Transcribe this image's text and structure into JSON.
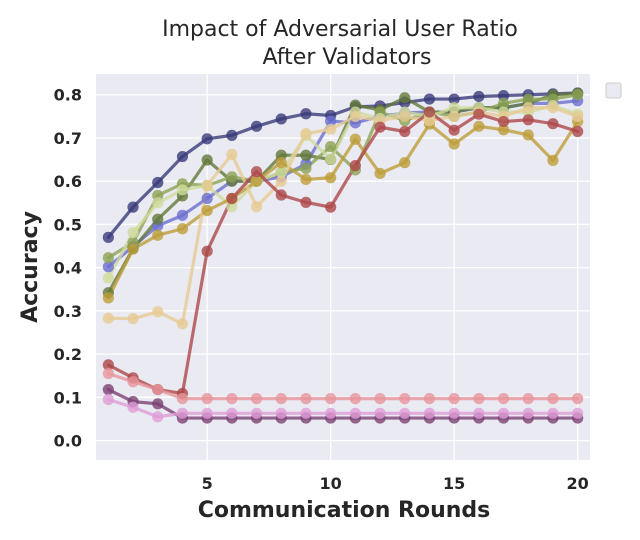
{
  "chart_data": {
    "type": "line",
    "title_line1": "Impact of Adversarial User Ratio",
    "title_line2": "After Validators",
    "xlabel": "Communication Rounds",
    "ylabel": "Accuracy",
    "xlim": [
      0.5,
      20.5
    ],
    "ylim": [
      -0.045,
      0.848
    ],
    "xticks": [
      5,
      10,
      15,
      20
    ],
    "xtick_labels": [
      "5",
      "10",
      "15",
      "20"
    ],
    "yticks": [
      0.0,
      0.1,
      0.2,
      0.3,
      0.4,
      0.5,
      0.6,
      0.7,
      0.8
    ],
    "ytick_labels": [
      "0.0",
      "0.1",
      "0.2",
      "0.3",
      "0.4",
      "0.5",
      "0.6",
      "0.7",
      "0.8"
    ],
    "grid": true,
    "legend": "empty box, top-right outside plot",
    "background": "#eaeaf2",
    "x": [
      1,
      2,
      3,
      4,
      5,
      6,
      7,
      8,
      9,
      10,
      11,
      12,
      13,
      14,
      15,
      16,
      17,
      18,
      19,
      20
    ],
    "series": [
      {
        "color": "#393b79",
        "values": [
          0.47,
          0.54,
          0.597,
          0.657,
          0.698,
          0.706,
          0.727,
          0.744,
          0.756,
          0.752,
          0.772,
          0.774,
          0.782,
          0.79,
          0.79,
          0.796,
          0.798,
          0.8,
          0.802,
          0.804
        ]
      },
      {
        "color": "#6b6ecf",
        "values": [
          0.402,
          0.449,
          0.497,
          0.521,
          0.56,
          0.6,
          0.6,
          0.61,
          0.64,
          0.739,
          0.735,
          0.75,
          0.758,
          0.76,
          0.76,
          0.77,
          0.77,
          0.78,
          0.78,
          0.786
        ]
      },
      {
        "color": "#637939",
        "values": [
          0.342,
          0.444,
          0.512,
          0.566,
          0.649,
          0.6,
          0.6,
          0.66,
          0.66,
          0.65,
          0.776,
          0.765,
          0.793,
          0.76,
          0.76,
          0.77,
          0.77,
          0.78,
          0.8,
          0.803
        ]
      },
      {
        "color": "#8ca252",
        "values": [
          0.423,
          0.458,
          0.567,
          0.594,
          0.59,
          0.61,
          0.6,
          0.62,
          0.63,
          0.68,
          0.626,
          0.76,
          0.74,
          0.76,
          0.75,
          0.76,
          0.78,
          0.79,
          0.79,
          0.8
        ]
      },
      {
        "color": "#cedb9c",
        "values": [
          0.376,
          0.481,
          0.55,
          0.58,
          0.59,
          0.541,
          0.6,
          0.62,
          0.706,
          0.651,
          0.76,
          0.745,
          0.76,
          0.75,
          0.77,
          0.77,
          0.76,
          0.76,
          0.775,
          0.755
        ]
      },
      {
        "color": "#bd9e39",
        "values": [
          0.33,
          0.443,
          0.475,
          0.49,
          0.532,
          0.56,
          0.6,
          0.643,
          0.604,
          0.608,
          0.697,
          0.618,
          0.643,
          0.732,
          0.686,
          0.727,
          0.719,
          0.707,
          0.648,
          0.738
        ]
      },
      {
        "color": "#e7cb94",
        "values": [
          0.283,
          0.282,
          0.298,
          0.27,
          0.59,
          0.662,
          0.541,
          0.6,
          0.71,
          0.72,
          0.75,
          0.74,
          0.75,
          0.74,
          0.75,
          0.76,
          0.75,
          0.77,
          0.77,
          0.75
        ]
      },
      {
        "color": "#ad494a",
        "values": [
          0.175,
          0.145,
          0.118,
          0.109,
          0.438,
          0.56,
          0.622,
          0.568,
          0.551,
          0.54,
          0.636,
          0.725,
          0.715,
          0.76,
          0.718,
          0.755,
          0.738,
          0.742,
          0.733,
          0.715
        ]
      },
      {
        "color": "#e7969c",
        "values": [
          0.155,
          0.136,
          0.118,
          0.097,
          0.097,
          0.097,
          0.097,
          0.097,
          0.097,
          0.097,
          0.097,
          0.097,
          0.097,
          0.097,
          0.097,
          0.097,
          0.097,
          0.097,
          0.097,
          0.097
        ]
      },
      {
        "color": "#7b4173",
        "values": [
          0.118,
          0.09,
          0.085,
          0.052,
          0.052,
          0.052,
          0.052,
          0.052,
          0.052,
          0.052,
          0.052,
          0.052,
          0.052,
          0.052,
          0.052,
          0.052,
          0.052,
          0.052,
          0.052,
          0.052
        ]
      },
      {
        "color": "#de9ed6",
        "values": [
          0.095,
          0.077,
          0.055,
          0.063,
          0.063,
          0.063,
          0.063,
          0.063,
          0.063,
          0.063,
          0.063,
          0.063,
          0.063,
          0.063,
          0.063,
          0.063,
          0.063,
          0.063,
          0.063,
          0.063
        ]
      }
    ]
  }
}
